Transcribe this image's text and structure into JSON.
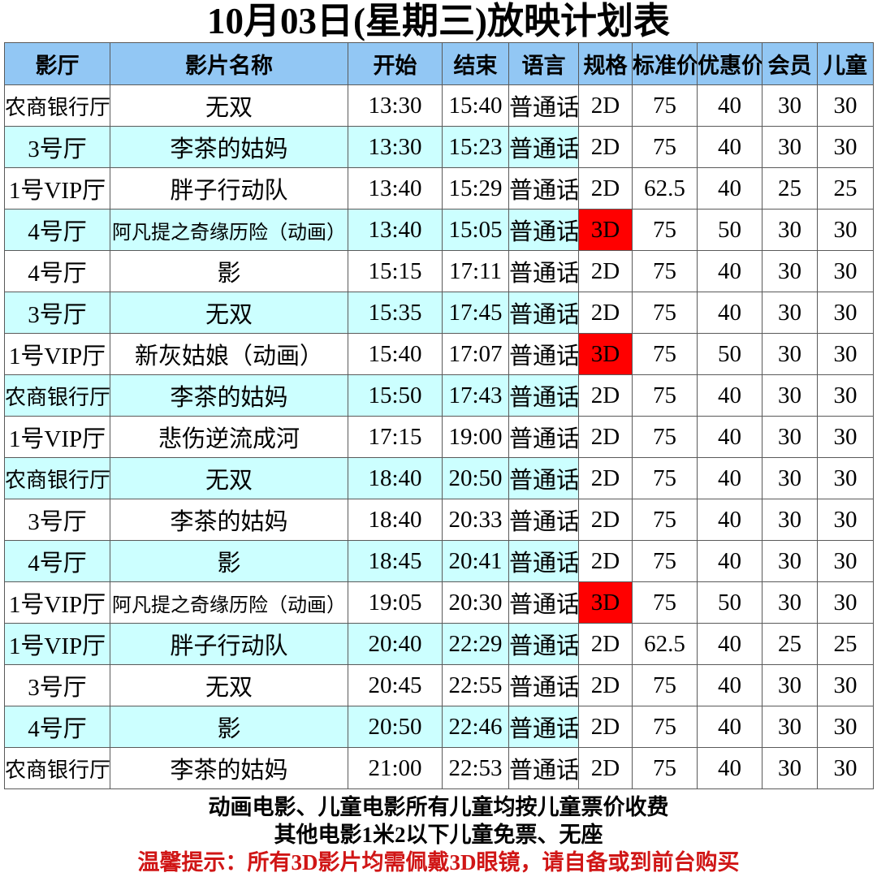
{
  "title": "10月03日(星期三)放映计划表",
  "colors": {
    "header_bg": "#92c7f4",
    "alt_row_bg": "#ccffff",
    "format_3d_bg": "#ff0000",
    "warning_text": "#d01616"
  },
  "table": {
    "columns": [
      {
        "key": "hall",
        "label": "影厅"
      },
      {
        "key": "movie",
        "label": "影片名称"
      },
      {
        "key": "start",
        "label": "开始"
      },
      {
        "key": "end",
        "label": "结束"
      },
      {
        "key": "language",
        "label": "语言"
      },
      {
        "key": "format",
        "label": "规格"
      },
      {
        "key": "standard",
        "label": "标准价"
      },
      {
        "key": "discount",
        "label": "优惠价"
      },
      {
        "key": "member",
        "label": "会员"
      },
      {
        "key": "child",
        "label": "儿童"
      }
    ],
    "rows": [
      {
        "hall": "农商银行厅",
        "movie": "无双",
        "start": "13:30",
        "end": "15:40",
        "language": "普通话",
        "format": "2D",
        "standard": "75",
        "discount": "40",
        "member": "30",
        "child": "30"
      },
      {
        "hall": "3号厅",
        "movie": "李茶的姑妈",
        "start": "13:30",
        "end": "15:23",
        "language": "普通话",
        "format": "2D",
        "standard": "75",
        "discount": "40",
        "member": "30",
        "child": "30"
      },
      {
        "hall": "1号VIP厅",
        "movie": "胖子行动队",
        "start": "13:40",
        "end": "15:29",
        "language": "普通话",
        "format": "2D",
        "standard": "62.5",
        "discount": "40",
        "member": "25",
        "child": "25"
      },
      {
        "hall": "4号厅",
        "movie": "阿凡提之奇缘历险（动画）",
        "start": "13:40",
        "end": "15:05",
        "language": "普通话",
        "format": "3D",
        "standard": "75",
        "discount": "50",
        "member": "30",
        "child": "30"
      },
      {
        "hall": "4号厅",
        "movie": "影",
        "start": "15:15",
        "end": "17:11",
        "language": "普通话",
        "format": "2D",
        "standard": "75",
        "discount": "40",
        "member": "30",
        "child": "30"
      },
      {
        "hall": "3号厅",
        "movie": "无双",
        "start": "15:35",
        "end": "17:45",
        "language": "普通话",
        "format": "2D",
        "standard": "75",
        "discount": "40",
        "member": "30",
        "child": "30"
      },
      {
        "hall": "1号VIP厅",
        "movie": "新灰姑娘（动画）",
        "start": "15:40",
        "end": "17:07",
        "language": "普通话",
        "format": "3D",
        "standard": "75",
        "discount": "50",
        "member": "30",
        "child": "30"
      },
      {
        "hall": "农商银行厅",
        "movie": "李茶的姑妈",
        "start": "15:50",
        "end": "17:43",
        "language": "普通话",
        "format": "2D",
        "standard": "75",
        "discount": "40",
        "member": "30",
        "child": "30"
      },
      {
        "hall": "1号VIP厅",
        "movie": "悲伤逆流成河",
        "start": "17:15",
        "end": "19:00",
        "language": "普通话",
        "format": "2D",
        "standard": "75",
        "discount": "40",
        "member": "30",
        "child": "30"
      },
      {
        "hall": "农商银行厅",
        "movie": "无双",
        "start": "18:40",
        "end": "20:50",
        "language": "普通话",
        "format": "2D",
        "standard": "75",
        "discount": "40",
        "member": "30",
        "child": "30"
      },
      {
        "hall": "3号厅",
        "movie": "李茶的姑妈",
        "start": "18:40",
        "end": "20:33",
        "language": "普通话",
        "format": "2D",
        "standard": "75",
        "discount": "40",
        "member": "30",
        "child": "30"
      },
      {
        "hall": "4号厅",
        "movie": "影",
        "start": "18:45",
        "end": "20:41",
        "language": "普通话",
        "format": "2D",
        "standard": "75",
        "discount": "40",
        "member": "30",
        "child": "30"
      },
      {
        "hall": "1号VIP厅",
        "movie": "阿凡提之奇缘历险（动画）",
        "start": "19:05",
        "end": "20:30",
        "language": "普通话",
        "format": "3D",
        "standard": "75",
        "discount": "50",
        "member": "30",
        "child": "30"
      },
      {
        "hall": "1号VIP厅",
        "movie": "胖子行动队",
        "start": "20:40",
        "end": "22:29",
        "language": "普通话",
        "format": "2D",
        "standard": "62.5",
        "discount": "40",
        "member": "25",
        "child": "25"
      },
      {
        "hall": "3号厅",
        "movie": "无双",
        "start": "20:45",
        "end": "22:55",
        "language": "普通话",
        "format": "2D",
        "standard": "75",
        "discount": "40",
        "member": "30",
        "child": "30"
      },
      {
        "hall": "4号厅",
        "movie": "影",
        "start": "20:50",
        "end": "22:46",
        "language": "普通话",
        "format": "2D",
        "standard": "75",
        "discount": "40",
        "member": "30",
        "child": "30"
      },
      {
        "hall": "农商银行厅",
        "movie": "李茶的姑妈",
        "start": "21:00",
        "end": "22:53",
        "language": "普通话",
        "format": "2D",
        "standard": "75",
        "discount": "40",
        "member": "30",
        "child": "30"
      }
    ]
  },
  "notes": [
    {
      "text": "动画电影、儿童电影所有儿童均按儿童票价收费",
      "style": "normal"
    },
    {
      "text": "其他电影1米2以下儿童免票、无座",
      "style": "normal"
    },
    {
      "text": "温馨提示：所有3D影片均需佩戴3D眼镜，请自备或到前台购买",
      "style": "warning"
    }
  ]
}
